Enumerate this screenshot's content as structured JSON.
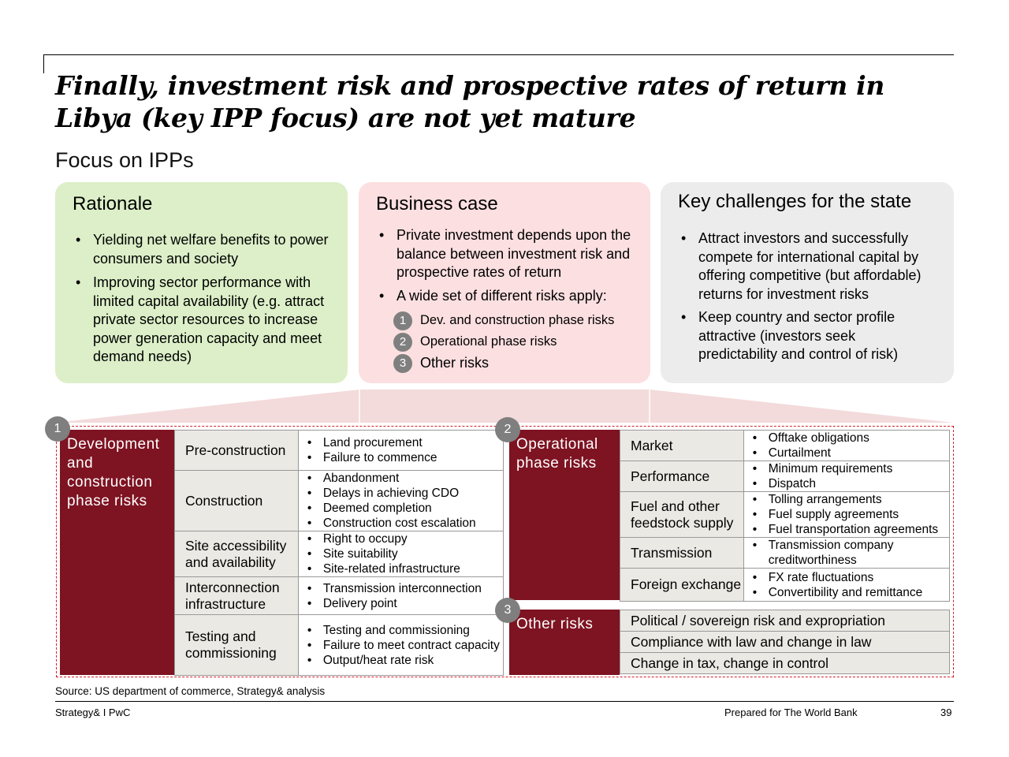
{
  "title": "Finally, investment risk and prospective rates of return in Libya (key IPP focus) are not yet mature",
  "subtitle": "Focus on IPPs",
  "rationale": {
    "heading": "Rationale",
    "bullets": [
      "Yielding net welfare benefits to power consumers and society",
      "Improving sector performance with limited capital availability (e.g. attract private sector resources to increase power generation capacity and meet demand needs)"
    ]
  },
  "business_case": {
    "heading": "Business case",
    "bullets": [
      "Private investment depends upon the balance between investment risk and prospective rates of return",
      "A wide set of different risks apply:"
    ],
    "numbered": [
      {
        "num": "1",
        "text": "Dev. and construction phase risks"
      },
      {
        "num": "2",
        "text": "Operational phase risks"
      },
      {
        "num": "3",
        "text": "Other risks"
      }
    ]
  },
  "challenges": {
    "heading": "Key challenges for the state",
    "bullets": [
      "Attract investors and successfully compete for international capital by offering competitive (but affordable) returns for investment risks",
      "Keep country and sector profile attractive (investors seek predictability and control of risk)"
    ]
  },
  "dev_risks": {
    "num": "1",
    "heading": "Development and construction phase risks",
    "rows": [
      {
        "category": "Pre-construction",
        "items": [
          "Land procurement",
          "Failure to commence"
        ]
      },
      {
        "category": "Construction",
        "items": [
          "Abandonment",
          "Delays in achieving CDO",
          "Deemed completion",
          "Construction cost escalation"
        ]
      },
      {
        "category": "Site accessibility and availability",
        "items": [
          "Right to occupy",
          "Site suitability",
          "Site-related infrastructure"
        ]
      },
      {
        "category": "Interconnection infrastructure",
        "items": [
          "Transmission interconnection",
          "Delivery point"
        ]
      },
      {
        "category": "Testing and commissioning",
        "items": [
          "Testing and commissioning",
          "Failure to meet contract capacity",
          "Output/heat rate risk"
        ]
      }
    ]
  },
  "op_risks": {
    "num": "2",
    "heading": "Operational phase risks",
    "rows": [
      {
        "category": "Market",
        "items": [
          "Offtake obligations",
          "Curtailment"
        ]
      },
      {
        "category": "Performance",
        "items": [
          "Minimum requirements",
          "Dispatch"
        ]
      },
      {
        "category": "Fuel and other feedstock supply",
        "items": [
          "Tolling arrangements",
          "Fuel supply agreements",
          "Fuel transportation agreements"
        ]
      },
      {
        "category": "Transmission",
        "items": [
          "Transmission company creditworthiness"
        ]
      },
      {
        "category": "Foreign exchange",
        "items": [
          "FX rate fluctuations",
          "Convertibility and remittance"
        ]
      }
    ]
  },
  "other_risks": {
    "num": "3",
    "heading": "Other risks",
    "rows": [
      "Political / sovereign risk and expropriation",
      "Compliance with law and change in law",
      "Change in tax, change in control"
    ]
  },
  "source": "Source: US department of commerce, Strategy& analysis",
  "footer": {
    "left": "Strategy& I PwC",
    "center": "Prepared for The World Bank",
    "page": "39"
  },
  "colors": {
    "rationale_bg": "#dcefc8",
    "business_bg": "#fcdfe0",
    "challenges_bg": "#ececec",
    "risk_header": "#7e1322",
    "dashed_border": "#d1202a"
  }
}
